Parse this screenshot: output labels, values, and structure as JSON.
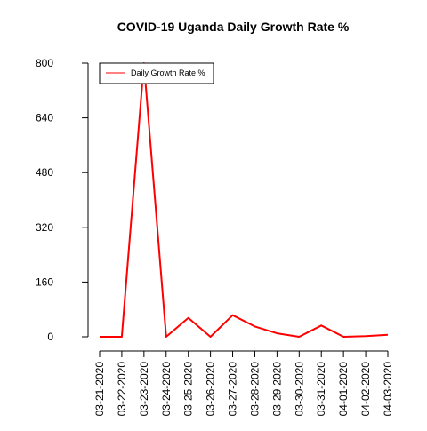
{
  "chart_data": {
    "type": "line",
    "title": "COVID-19 Uganda Daily Growth Rate %",
    "xlabel": "",
    "ylabel": "",
    "categories": [
      "03-21-2020",
      "03-22-2020",
      "03-23-2020",
      "03-24-2020",
      "03-25-2020",
      "03-26-2020",
      "03-27-2020",
      "03-28-2020",
      "03-29-2020",
      "03-30-2020",
      "03-31-2020",
      "04-01-2020",
      "04-02-2020",
      "04-03-2020"
    ],
    "series": [
      {
        "name": "Daily Growth Rate %",
        "values": [
          0,
          0,
          800,
          0,
          55,
          0,
          63,
          30,
          10,
          0,
          33,
          0,
          2,
          6
        ]
      }
    ],
    "yticks": [
      0,
      160,
      320,
      480,
      640,
      800
    ],
    "ylim": [
      0,
      800
    ],
    "grid": false,
    "legend_position": "top-left",
    "colors": {
      "series": "#ff0000",
      "axis": "#000000",
      "background": "#ffffff"
    }
  }
}
